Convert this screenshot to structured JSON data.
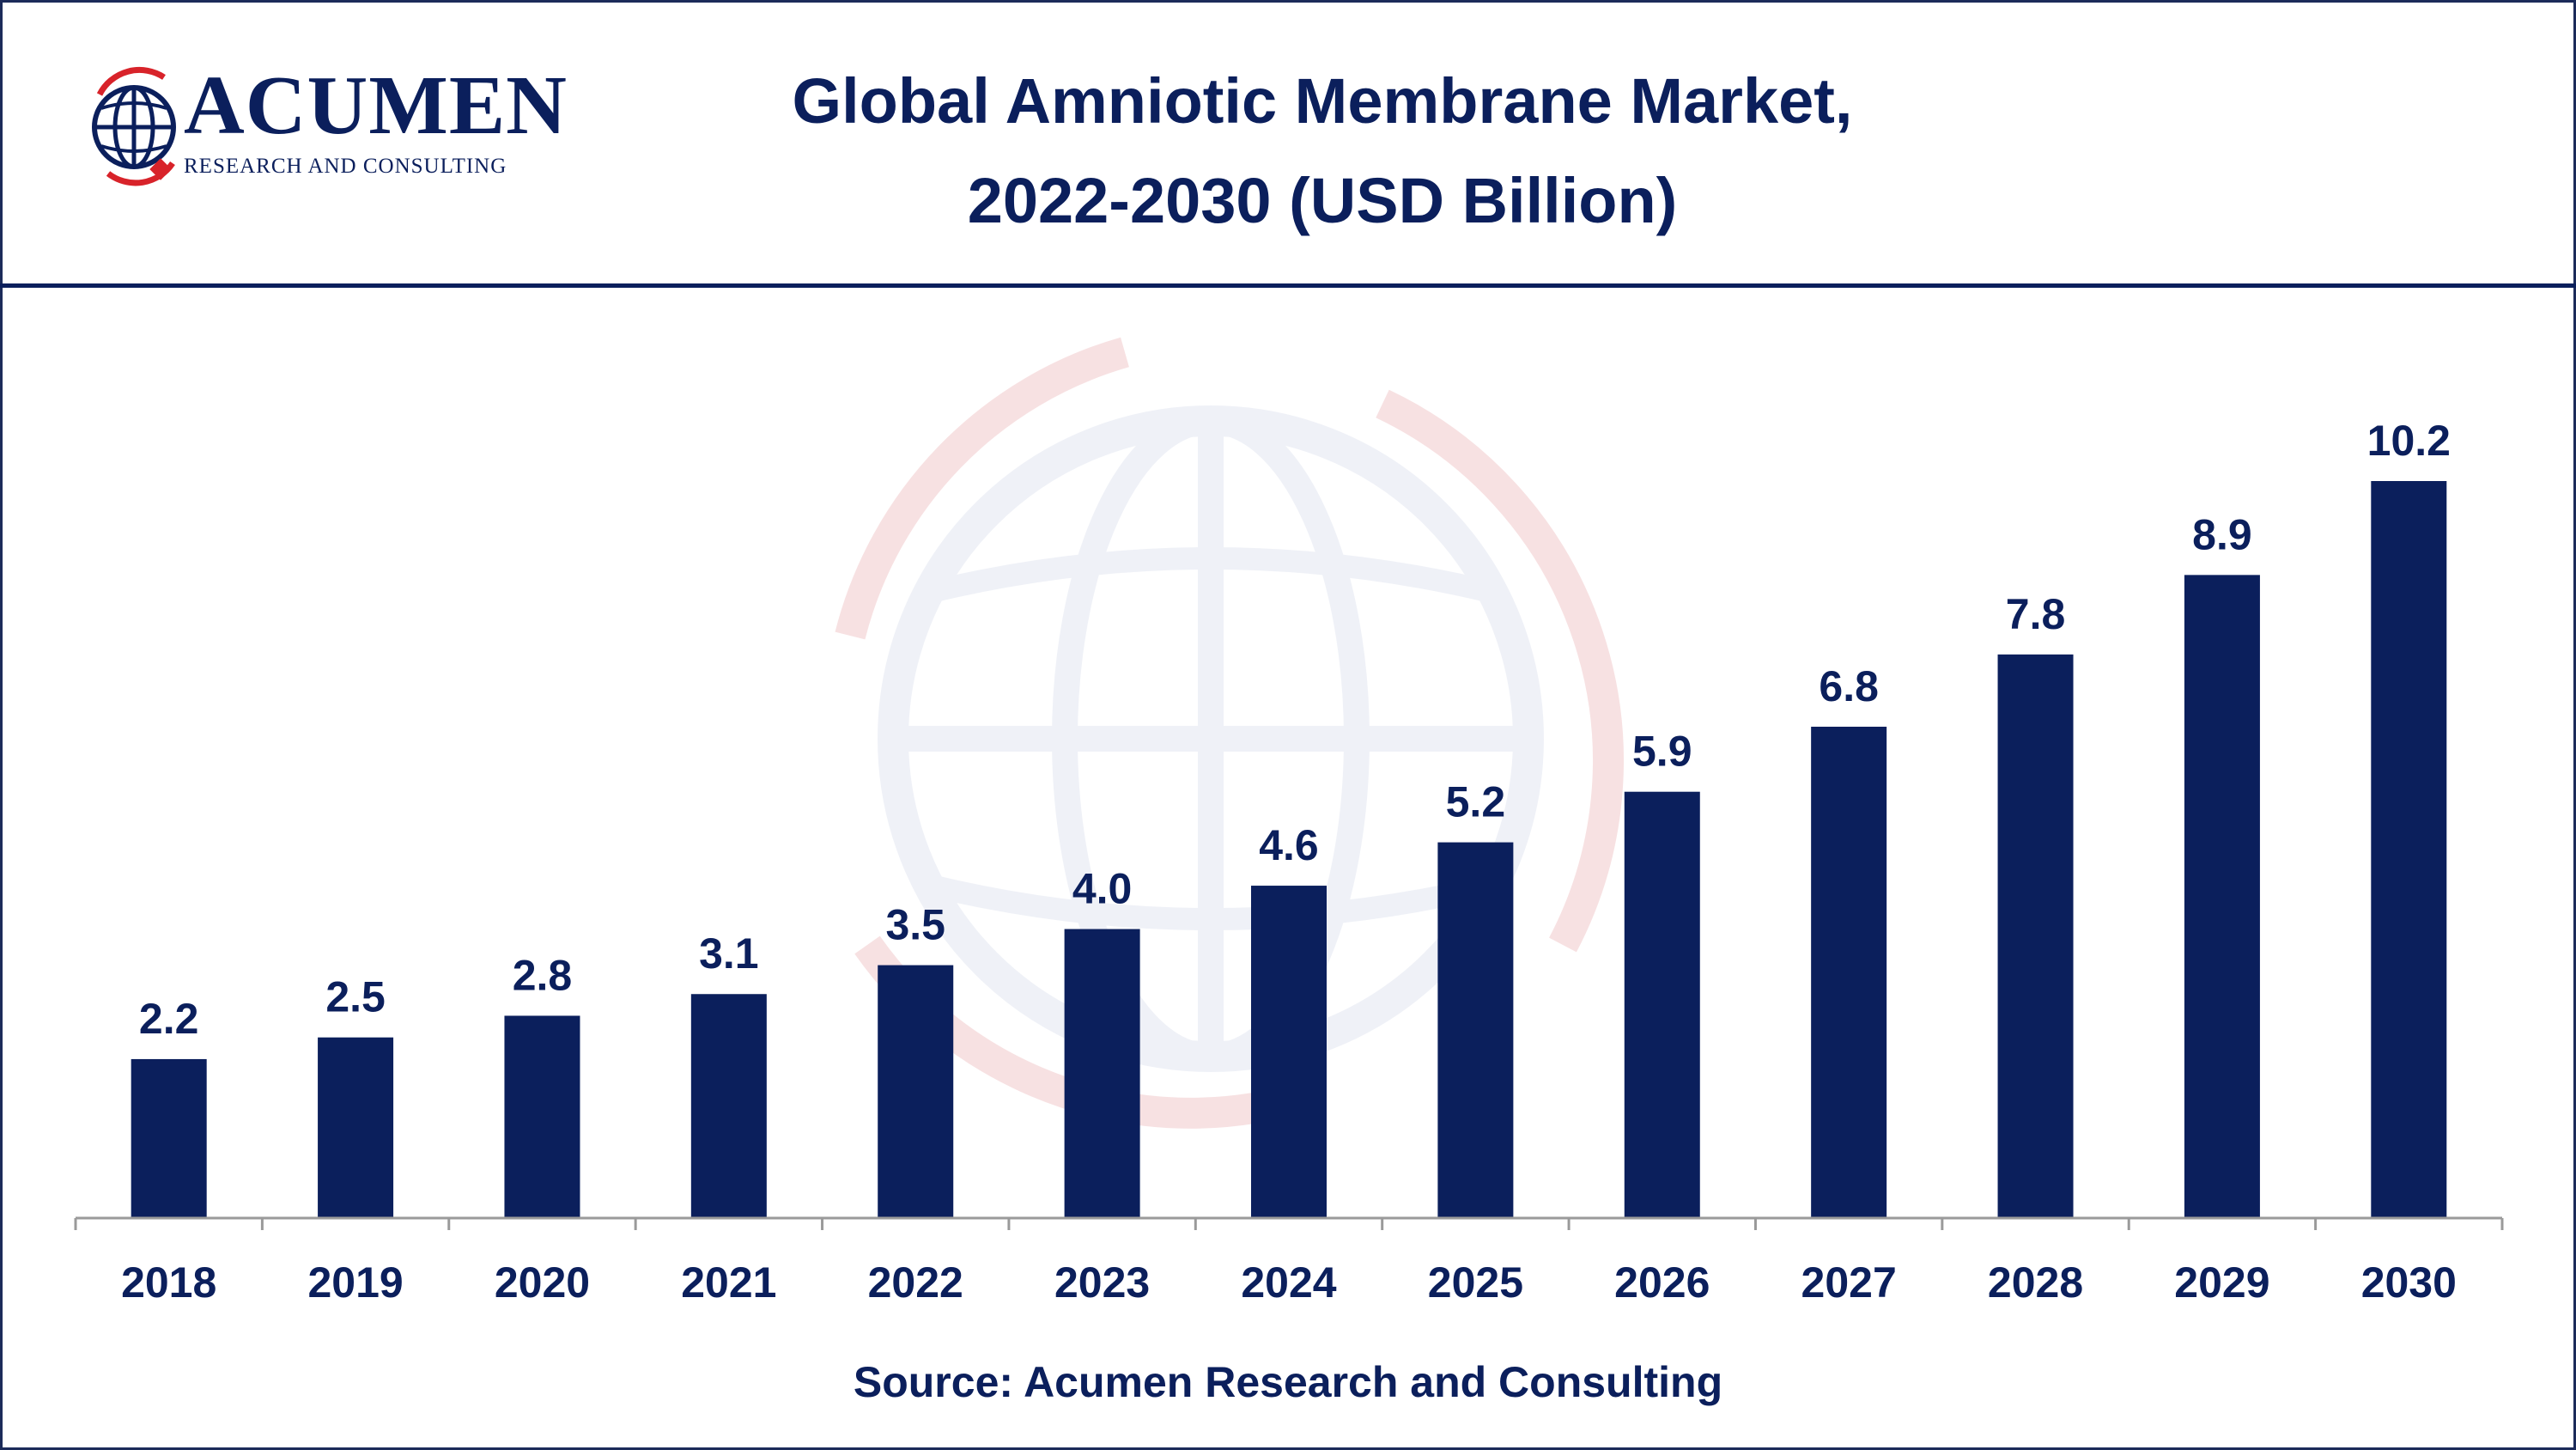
{
  "header": {
    "title_line1": "Global Amniotic Membrane Market,",
    "title_line2": "2022-2030 (USD Billion)"
  },
  "logo": {
    "name": "ACUMEN",
    "tagline": "RESEARCH AND CONSULTING",
    "icon": "globe-icon"
  },
  "source": "Source: Acumen Research and Consulting",
  "colors": {
    "bar": "#0b1f5c",
    "text": "#0b1f5c",
    "accent_red": "#d8232a",
    "watermark": "#e3e7f1"
  },
  "chart_data": {
    "type": "bar",
    "title": "Global Amniotic Membrane Market, 2022-2030 (USD Billion)",
    "xlabel": "",
    "ylabel": "",
    "categories": [
      "2018",
      "2019",
      "2020",
      "2021",
      "2022",
      "2023",
      "2024",
      "2025",
      "2026",
      "2027",
      "2028",
      "2029",
      "2030"
    ],
    "values": [
      2.2,
      2.5,
      2.8,
      3.1,
      3.5,
      4.0,
      4.6,
      5.2,
      5.9,
      6.8,
      7.8,
      8.9,
      10.2
    ],
    "value_labels": [
      "2.2",
      "2.5",
      "2.8",
      "3.1",
      "3.5",
      "4.0",
      "4.6",
      "5.2",
      "5.9",
      "6.8",
      "7.8",
      "8.9",
      "10.2"
    ],
    "ylim": [
      0,
      10.2
    ],
    "grid": false,
    "legend": "none"
  }
}
